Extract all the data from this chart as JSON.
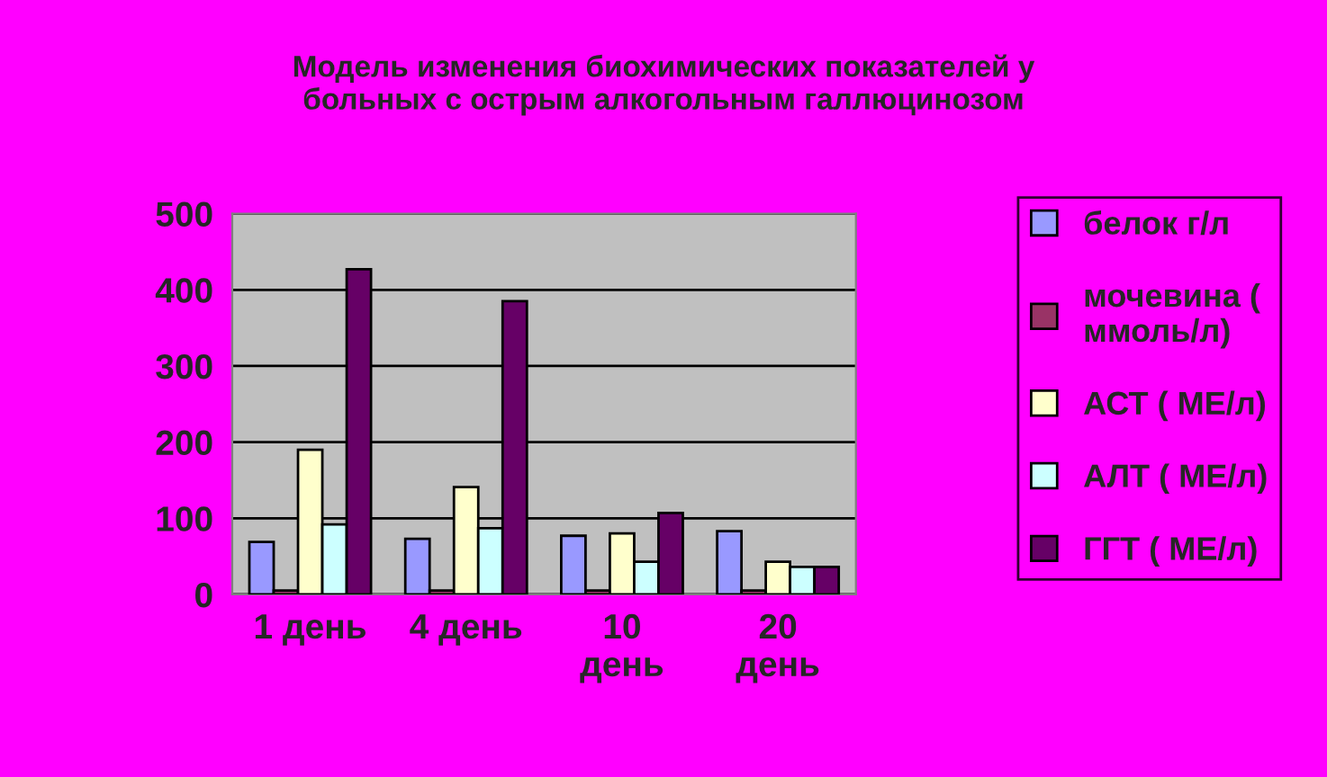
{
  "chart_data": {
    "type": "bar",
    "title": "Модель изменения биохимических показателей у\nбольных с острым алкогольным галлюцинозом",
    "categories": [
      "1 день",
      "4 день",
      "10 день",
      "20 день"
    ],
    "series": [
      {
        "name": "белок г/л",
        "color": "#9999ff",
        "values": [
          69,
          73,
          77,
          83
        ]
      },
      {
        "name": "мочевина (\nммоль/л)",
        "color": "#993366",
        "values": [
          5,
          5,
          5,
          5
        ]
      },
      {
        "name": "АСТ ( МЕ/л)",
        "color": "#ffffcc",
        "values": [
          190,
          141,
          80,
          43
        ]
      },
      {
        "name": "АЛТ ( МЕ/л)",
        "color": "#ccffff",
        "values": [
          92,
          87,
          43,
          36
        ]
      },
      {
        "name": "ГГТ ( МЕ/л)",
        "color": "#660066",
        "values": [
          427,
          385,
          107,
          36
        ]
      }
    ],
    "ylim": [
      0,
      500
    ],
    "yticks": [
      0,
      100,
      200,
      300,
      400,
      500
    ],
    "grid": "y",
    "legend": "right"
  }
}
